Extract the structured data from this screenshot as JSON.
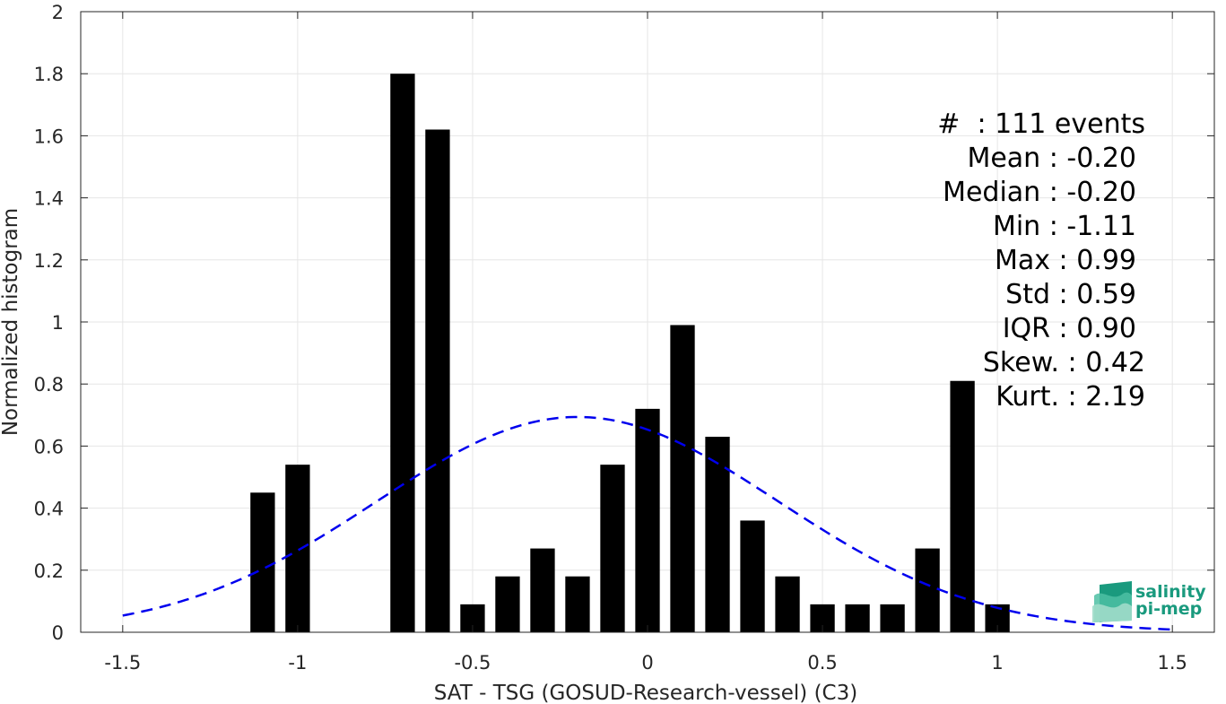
{
  "chart_data": {
    "type": "bar",
    "xlabel": "SAT - TSG (GOSUD-Research-vessel) (C3)",
    "ylabel": "Normalized histogram",
    "xlim": [
      -1.62,
      1.62
    ],
    "ylim": [
      0,
      2
    ],
    "xticks": [
      -1.5,
      -1,
      -0.5,
      0,
      0.5,
      1,
      1.5
    ],
    "xtick_labels": [
      "-1.5",
      "-1",
      "-0.5",
      "0",
      "0.5",
      "1",
      "1.5"
    ],
    "yticks": [
      0,
      0.2,
      0.4,
      0.6,
      0.8,
      1,
      1.2,
      1.4,
      1.6,
      1.8,
      2
    ],
    "ytick_labels": [
      "0",
      "0.2",
      "0.4",
      "0.6",
      "0.8",
      "1",
      "1.2",
      "1.4",
      "1.6",
      "1.8",
      "2"
    ],
    "grid": true,
    "bar_color": "#000000",
    "bar_width": 0.07,
    "bars": [
      {
        "x": -1.1,
        "y": 0.45
      },
      {
        "x": -1.0,
        "y": 0.54
      },
      {
        "x": -0.7,
        "y": 1.8
      },
      {
        "x": -0.6,
        "y": 1.62
      },
      {
        "x": -0.5,
        "y": 0.09
      },
      {
        "x": -0.4,
        "y": 0.18
      },
      {
        "x": -0.3,
        "y": 0.27
      },
      {
        "x": -0.2,
        "y": 0.18
      },
      {
        "x": -0.1,
        "y": 0.54
      },
      {
        "x": 0.0,
        "y": 0.72
      },
      {
        "x": 0.1,
        "y": 0.99
      },
      {
        "x": 0.2,
        "y": 0.63
      },
      {
        "x": 0.3,
        "y": 0.36
      },
      {
        "x": 0.4,
        "y": 0.18
      },
      {
        "x": 0.5,
        "y": 0.09
      },
      {
        "x": 0.6,
        "y": 0.09
      },
      {
        "x": 0.7,
        "y": 0.09
      },
      {
        "x": 0.8,
        "y": 0.27
      },
      {
        "x": 0.9,
        "y": 0.81
      },
      {
        "x": 1.0,
        "y": 0.09
      }
    ],
    "fit_curve": {
      "type": "normal",
      "mean": -0.2,
      "std": 0.575,
      "x_range": [
        -1.5,
        1.5
      ],
      "color": "#0000ee",
      "style": "dashed"
    }
  },
  "stats": [
    "#  : 111 events",
    "Mean : -0.20",
    "Median : -0.20",
    "Min : -1.11",
    "Max : 0.99",
    "Std : 0.59",
    "IQR : 0.90",
    "Skew. : 0.42",
    "Kurt. : 2.19"
  ],
  "logo": {
    "line1": "salinity",
    "line2": "pi-mep",
    "color": "#1a9a7e"
  }
}
